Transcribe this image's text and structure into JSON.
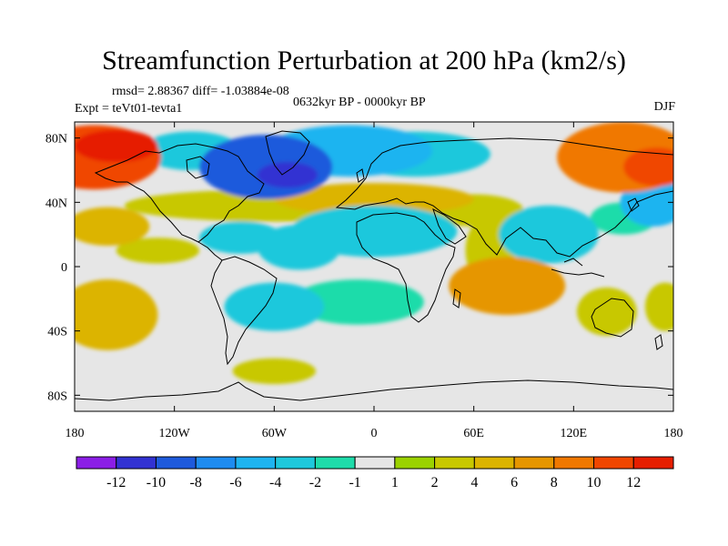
{
  "chart_data": {
    "type": "heatmap",
    "title": "Streamfunction Perturbation at 200 hPa (km2/s)",
    "stats_text": "rmsd= 2.88367 diff= -1.03884e-08",
    "experiment_text": "Expt = teVt01-tevta1",
    "period_text": "0632kyr BP - 0000kyr BP",
    "season_text": "DJF",
    "units": "km2/s",
    "x_range": [
      -180,
      180
    ],
    "y_range": [
      -90,
      90
    ],
    "x_ticks": [
      {
        "value": -180,
        "label": "180"
      },
      {
        "value": -120,
        "label": "120W"
      },
      {
        "value": -60,
        "label": "60W"
      },
      {
        "value": 0,
        "label": "0"
      },
      {
        "value": 60,
        "label": "60E"
      },
      {
        "value": 120,
        "label": "120E"
      },
      {
        "value": 180,
        "label": "180"
      }
    ],
    "y_ticks": [
      {
        "value": 80,
        "label": "80N"
      },
      {
        "value": 40,
        "label": "40N"
      },
      {
        "value": 0,
        "label": "0"
      },
      {
        "value": -40,
        "label": "40S"
      },
      {
        "value": -80,
        "label": "80S"
      }
    ],
    "colorbar": {
      "colors": [
        "#8b1ee6",
        "#3232d2",
        "#1e5adc",
        "#1e8cf0",
        "#1eb4f0",
        "#1ec8dc",
        "#1edcaa",
        "#e6e6e6",
        "#9bd200",
        "#c8c800",
        "#dcb400",
        "#e69600",
        "#f07800",
        "#f04600",
        "#e61e00"
      ],
      "labels": [
        "-12",
        "-10",
        "-8",
        "-6",
        "-4",
        "-2",
        "-1",
        "1",
        "2",
        "4",
        "6",
        "8",
        "10",
        "12"
      ]
    },
    "features": [
      {
        "lon": -168,
        "lat": 68,
        "rx": 40,
        "ry": 20,
        "value": 10
      },
      {
        "lon": -155,
        "lat": 75,
        "rx": 25,
        "ry": 10,
        "value": 12
      },
      {
        "lon": -15,
        "lat": 72,
        "rx": 50,
        "ry": 16,
        "value": -5
      },
      {
        "lon": 25,
        "lat": 70,
        "rx": 45,
        "ry": 14,
        "value": -4
      },
      {
        "lon": -65,
        "lat": 62,
        "rx": 40,
        "ry": 20,
        "value": -9
      },
      {
        "lon": -52,
        "lat": 57,
        "rx": 18,
        "ry": 8,
        "value": -11
      },
      {
        "lon": -110,
        "lat": 72,
        "rx": 30,
        "ry": 12,
        "value": -4
      },
      {
        "lon": 150,
        "lat": 68,
        "rx": 40,
        "ry": 22,
        "value": 8
      },
      {
        "lon": 170,
        "lat": 62,
        "rx": 20,
        "ry": 12,
        "value": 10
      },
      {
        "lon": -160,
        "lat": 25,
        "rx": 25,
        "ry": 12,
        "value": 5
      },
      {
        "lon": -60,
        "lat": 38,
        "rx": 90,
        "ry": 10,
        "value": 3
      },
      {
        "lon": 0,
        "lat": 42,
        "rx": 60,
        "ry": 10,
        "value": 4
      },
      {
        "lon": 60,
        "lat": 35,
        "rx": 30,
        "ry": 10,
        "value": 3
      },
      {
        "lon": -80,
        "lat": 18,
        "rx": 25,
        "ry": 10,
        "value": -3
      },
      {
        "lon": -130,
        "lat": 10,
        "rx": 25,
        "ry": 8,
        "value": 2
      },
      {
        "lon": -45,
        "lat": 12,
        "rx": 25,
        "ry": 14,
        "value": -3
      },
      {
        "lon": 0,
        "lat": 22,
        "rx": 50,
        "ry": 16,
        "value": -4
      },
      {
        "lon": 70,
        "lat": 10,
        "rx": 15,
        "ry": 22,
        "value": 3
      },
      {
        "lon": 80,
        "lat": -12,
        "rx": 35,
        "ry": 18,
        "value": 7
      },
      {
        "lon": 105,
        "lat": 20,
        "rx": 30,
        "ry": 18,
        "value": -3
      },
      {
        "lon": 168,
        "lat": 40,
        "rx": 20,
        "ry": 15,
        "value": -5
      },
      {
        "lon": 150,
        "lat": 30,
        "rx": 20,
        "ry": 10,
        "value": -2
      },
      {
        "lon": -60,
        "lat": -25,
        "rx": 30,
        "ry": 15,
        "value": -3
      },
      {
        "lon": -10,
        "lat": -22,
        "rx": 40,
        "ry": 14,
        "value": -2
      },
      {
        "lon": -160,
        "lat": -30,
        "rx": 30,
        "ry": 22,
        "value": 4
      },
      {
        "lon": 140,
        "lat": -28,
        "rx": 18,
        "ry": 15,
        "value": 2
      },
      {
        "lon": 175,
        "lat": -25,
        "rx": 12,
        "ry": 15,
        "value": 2
      },
      {
        "lon": -60,
        "lat": -65,
        "rx": 25,
        "ry": 8,
        "value": 2
      }
    ]
  }
}
